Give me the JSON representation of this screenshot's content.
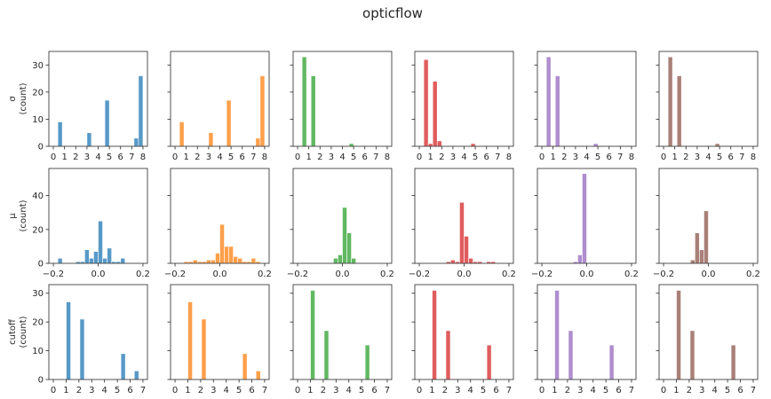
{
  "title": "opticflow",
  "colors": [
    "#1f77b4",
    "#ff7f0e",
    "#2ca02c",
    "#d62728",
    "#9467bd",
    "#8c564b"
  ],
  "bar_alpha": 0.75,
  "chart_data": [
    {
      "type": "bar",
      "row": "sigma",
      "ylabel": [
        "σ",
        "(count)"
      ],
      "xlim": [
        -0.4,
        8.4
      ],
      "ylim": [
        0,
        35
      ],
      "xticks": [
        0,
        1,
        2,
        3,
        4,
        5,
        6,
        7,
        8
      ],
      "yticks": [
        0,
        10,
        20,
        30
      ],
      "bin_width": 0.4,
      "series": [
        {
          "centers": [
            0.6,
            3.2,
            4.8,
            7.4,
            7.8
          ],
          "values": [
            9,
            5,
            17,
            3,
            26
          ]
        },
        {
          "centers": [
            0.6,
            3.2,
            4.8,
            7.4,
            7.8
          ],
          "values": [
            9,
            5,
            17,
            3,
            26
          ]
        },
        {
          "centers": [
            0.6,
            1.4,
            4.8
          ],
          "values": [
            33,
            26,
            1
          ]
        },
        {
          "centers": [
            0.6,
            1.0,
            1.4,
            1.8,
            4.8
          ],
          "values": [
            32,
            1,
            24,
            2,
            1
          ]
        },
        {
          "centers": [
            0.6,
            1.4,
            4.8
          ],
          "values": [
            33,
            26,
            1
          ]
        },
        {
          "centers": [
            0.6,
            1.4,
            4.8
          ],
          "values": [
            33,
            26,
            1
          ]
        }
      ]
    },
    {
      "type": "bar",
      "row": "mu",
      "ylabel": [
        "μ",
        "(count)"
      ],
      "xlim": [
        -0.22,
        0.22
      ],
      "ylim": [
        0,
        56
      ],
      "xticks": [
        -0.2,
        0.0,
        0.2
      ],
      "xtick_labels": [
        "−0.2",
        "0.0",
        "0.2"
      ],
      "yticks": [
        0,
        20,
        40
      ],
      "bin_width": 0.02,
      "series": [
        {
          "centers": [
            -0.17,
            -0.09,
            -0.07,
            -0.05,
            -0.03,
            -0.01,
            0.01,
            0.03,
            0.05,
            0.07,
            0.09,
            0.11
          ],
          "values": [
            3,
            1,
            1,
            8,
            3,
            7,
            25,
            3,
            9,
            1,
            1,
            3
          ]
        },
        {
          "centers": [
            -0.15,
            -0.13,
            -0.11,
            -0.09,
            -0.07,
            -0.05,
            -0.03,
            -0.01,
            0.01,
            0.03,
            0.05,
            0.07,
            0.09,
            0.11,
            0.13,
            0.15,
            0.17
          ],
          "values": [
            1,
            1,
            2,
            1,
            1,
            2,
            2,
            6,
            23,
            10,
            10,
            4,
            3,
            1,
            1,
            3,
            1
          ]
        },
        {
          "centers": [
            -0.03,
            -0.01,
            0.01,
            0.03,
            0.05
          ],
          "values": [
            3,
            5,
            33,
            18,
            3
          ]
        },
        {
          "centers": [
            -0.07,
            -0.05,
            -0.03,
            -0.01,
            0.01,
            0.03,
            0.05,
            0.07,
            0.11,
            0.13
          ],
          "values": [
            1,
            2,
            1,
            36,
            16,
            3,
            1,
            1,
            1,
            1
          ]
        },
        {
          "centers": [
            -0.05,
            -0.03,
            -0.01
          ],
          "values": [
            1,
            5,
            53
          ]
        },
        {
          "centers": [
            -0.07,
            -0.05,
            -0.03,
            -0.01
          ],
          "values": [
            2,
            18,
            8,
            31
          ]
        }
      ]
    },
    {
      "type": "bar",
      "row": "cutoff",
      "ylabel": [
        "cutoff",
        "(count)"
      ],
      "xlim": [
        -0.35,
        7.35
      ],
      "ylim": [
        0,
        33
      ],
      "xticks": [
        0,
        1,
        2,
        3,
        4,
        5,
        6,
        7
      ],
      "yticks": [
        0,
        10,
        20,
        30
      ],
      "bin_width": 0.35,
      "series": [
        {
          "centers": [
            1.18,
            2.25,
            5.45,
            6.5
          ],
          "values": [
            27,
            21,
            9,
            3
          ]
        },
        {
          "centers": [
            1.18,
            2.25,
            5.45,
            6.5
          ],
          "values": [
            27,
            21,
            9,
            3
          ]
        },
        {
          "centers": [
            1.18,
            2.25,
            5.45
          ],
          "values": [
            31,
            17,
            12
          ]
        },
        {
          "centers": [
            1.18,
            2.25,
            5.45
          ],
          "values": [
            31,
            17,
            12
          ]
        },
        {
          "centers": [
            1.18,
            2.25,
            5.45
          ],
          "values": [
            31,
            17,
            12
          ]
        },
        {
          "centers": [
            1.18,
            2.25,
            5.45
          ],
          "values": [
            31,
            17,
            12
          ]
        }
      ]
    }
  ]
}
